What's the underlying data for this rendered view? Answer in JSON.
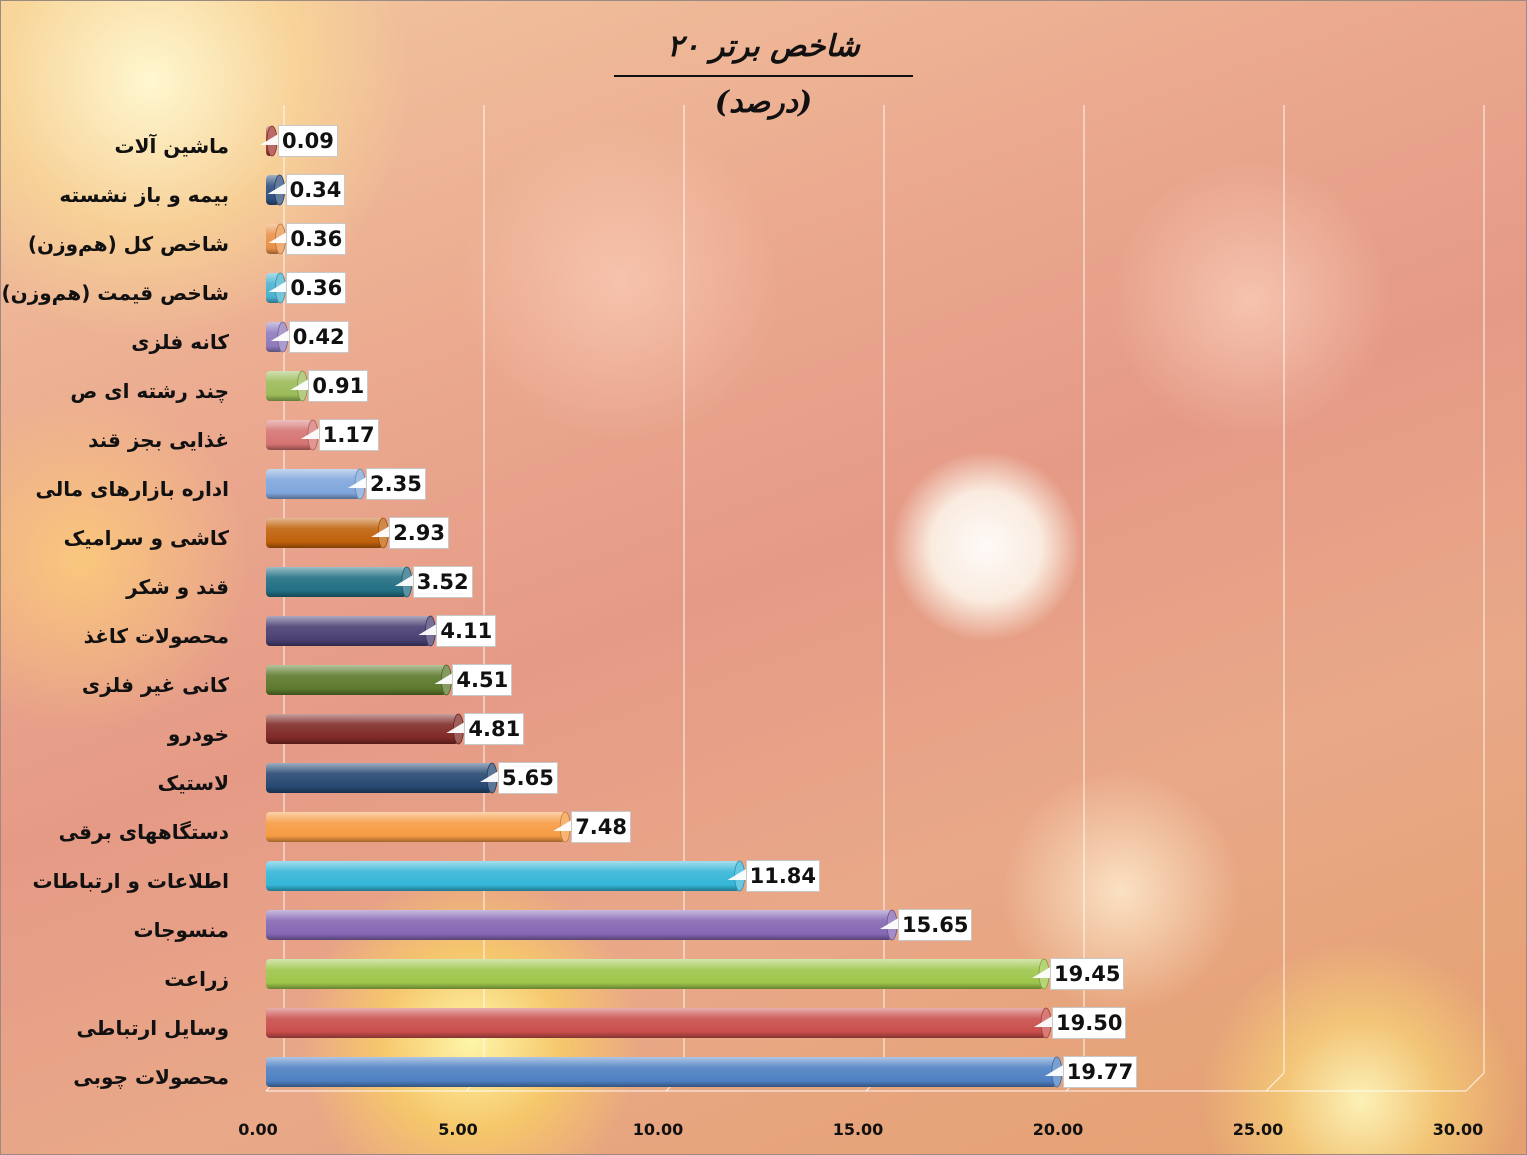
{
  "chart_data": {
    "type": "bar",
    "orientation": "horizontal",
    "title": "۲۰ شاخص برتر (درصد)",
    "xlabel": "",
    "ylabel": "",
    "xlim": [
      0,
      30
    ],
    "x_ticks": [
      "0.00",
      "5.00",
      "10.00",
      "15.00",
      "20.00",
      "25.00",
      "30.00"
    ],
    "grid": true,
    "categories": [
      "ماشین آلات",
      "بیمه و باز نشسته",
      "شاخص کل (هم‌وزن)",
      "شاخص قیمت (هم‌وزن)",
      "کانه فلزی",
      "چند رشته ای ص",
      "غذایی بجز قند",
      "اداره بازارهای مالی",
      "کاشی و سرامیک",
      "قند و شکر",
      "محصولات کاغذ",
      "کانی غیر فلزی",
      "خودرو",
      "لاستیک",
      "دستگاههای برقی",
      "اطلاعات و ارتباطات",
      "منسوجات",
      "زراعت",
      "وسایل ارتباطی",
      "محصولات چوبی"
    ],
    "values": [
      0.09,
      0.34,
      0.36,
      0.36,
      0.42,
      0.91,
      1.17,
      2.35,
      2.93,
      3.52,
      4.11,
      4.51,
      4.81,
      5.65,
      7.48,
      11.84,
      15.65,
      19.45,
      19.5,
      19.77
    ],
    "value_labels": [
      "0.09",
      "0.34",
      "0.36",
      "0.36",
      "0.42",
      "0.91",
      "1.17",
      "2.35",
      "2.93",
      "3.52",
      "4.11",
      "4.51",
      "4.81",
      "5.65",
      "7.48",
      "11.84",
      "15.65",
      "19.45",
      "19.50",
      "19.77"
    ],
    "bar_colors": [
      "#a33a36",
      "#2e4f7e",
      "#e9914a",
      "#4ab2cf",
      "#8f7bbd",
      "#9bbb59",
      "#d57472",
      "#7fa6dc",
      "#c0610b",
      "#216e83",
      "#4a3f72",
      "#5c7a2c",
      "#7f2a26",
      "#264872",
      "#f69b43",
      "#35b6d8",
      "#8567b3",
      "#9ec54b",
      "#c94e4b",
      "#4e80c2"
    ]
  }
}
